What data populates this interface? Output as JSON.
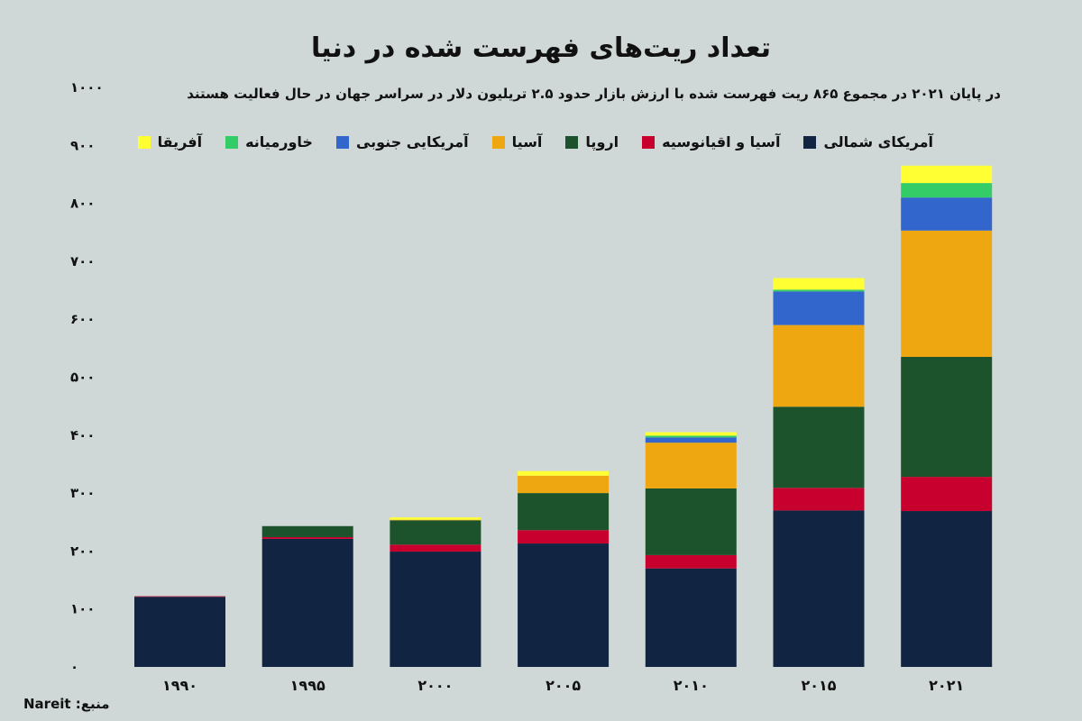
{
  "chart_data": {
    "type": "bar",
    "stacked": true,
    "title": "تعداد ریت‌های فهرست شده در دنیا",
    "subtitle": "در پایان ۲۰۲۱ در مجموع ۸۶۵ ریت فهرست شده با ارزش بازار حدود ۲.۵ تریلیون دلار در سراسر جهان در حال فعالیت هستند",
    "categories": [
      "۱۹۹۰",
      "۱۹۹۵",
      "۲۰۰۰",
      "۲۰۰۵",
      "۲۰۱۰",
      "۲۰۱۵",
      "۲۰۲۱"
    ],
    "ylim": [
      0,
      1000
    ],
    "yticks": [
      0,
      100,
      200,
      300,
      400,
      500,
      600,
      700,
      800,
      900,
      1000
    ],
    "ytick_labels": [
      "۰",
      "۱۰۰",
      "۲۰۰",
      "۳۰۰",
      "۴۰۰",
      "۵۰۰",
      "۶۰۰",
      "۷۰۰",
      "۸۰۰",
      "۹۰۰",
      "۱۰۰۰"
    ],
    "grid": false,
    "legend_position": "top",
    "series": [
      {
        "name": "آمریکای شمالی",
        "color": "#112442",
        "values": [
          121,
          221,
          199,
          213,
          170,
          270,
          269
        ]
      },
      {
        "name": "آسیا و اقیانوسیه",
        "color": "#c8002e",
        "values": [
          1,
          3,
          12,
          23,
          23,
          39,
          59
        ]
      },
      {
        "name": "اروپا",
        "color": "#1c532d",
        "values": [
          0,
          19,
          42,
          64,
          115,
          140,
          207
        ]
      },
      {
        "name": "آسیا",
        "color": "#eea711",
        "values": [
          0,
          0,
          1,
          30,
          79,
          141,
          218
        ]
      },
      {
        "name": "آمریکایی جنوبی",
        "color": "#3366cc",
        "values": [
          0,
          0,
          0,
          0,
          9,
          58,
          57
        ]
      },
      {
        "name": "خاورمیانه",
        "color": "#33cc66",
        "values": [
          0,
          0,
          0,
          0,
          3,
          3,
          25
        ]
      },
      {
        "name": "آفریقا",
        "color": "#ffff33",
        "values": [
          0,
          0,
          4,
          8,
          6,
          20,
          30
        ]
      }
    ]
  },
  "source": "منبع: Nareit"
}
